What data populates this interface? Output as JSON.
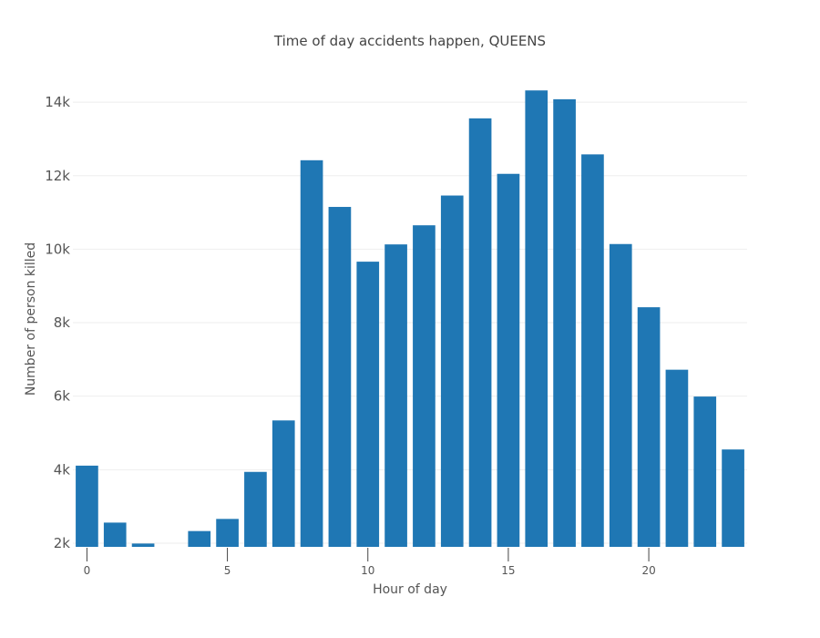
{
  "chart_data": {
    "type": "bar",
    "title": "Time of day accidents happen, QUEENS",
    "xlabel": "Hour of day",
    "ylabel": "Number of person killed",
    "x": [
      0,
      1,
      2,
      3,
      4,
      5,
      6,
      7,
      8,
      9,
      10,
      11,
      12,
      13,
      14,
      15,
      16,
      17,
      18,
      19,
      20,
      21,
      22,
      23
    ],
    "values": [
      4110,
      2560,
      1990,
      1750,
      2330,
      2660,
      3940,
      5340,
      12420,
      11150,
      9660,
      10130,
      10650,
      11460,
      13560,
      12050,
      14320,
      14080,
      12580,
      10140,
      8420,
      6720,
      5990,
      4550
    ],
    "ylim": [
      1900,
      14350
    ],
    "xlim": [
      -0.5,
      23.5
    ],
    "yticks": [
      2000,
      4000,
      6000,
      8000,
      10000,
      12000,
      14000
    ],
    "ytick_labels": [
      "2k",
      "4k",
      "6k",
      "8k",
      "10k",
      "12k",
      "14k"
    ],
    "xticks": [
      0,
      5,
      10,
      15,
      20
    ],
    "xtick_labels": [
      "0",
      "5",
      "10",
      "15",
      "20"
    ],
    "grid": true,
    "colors": {
      "bar": "#1f77b4",
      "grid": "#eeeeee",
      "text": "#444444"
    }
  }
}
